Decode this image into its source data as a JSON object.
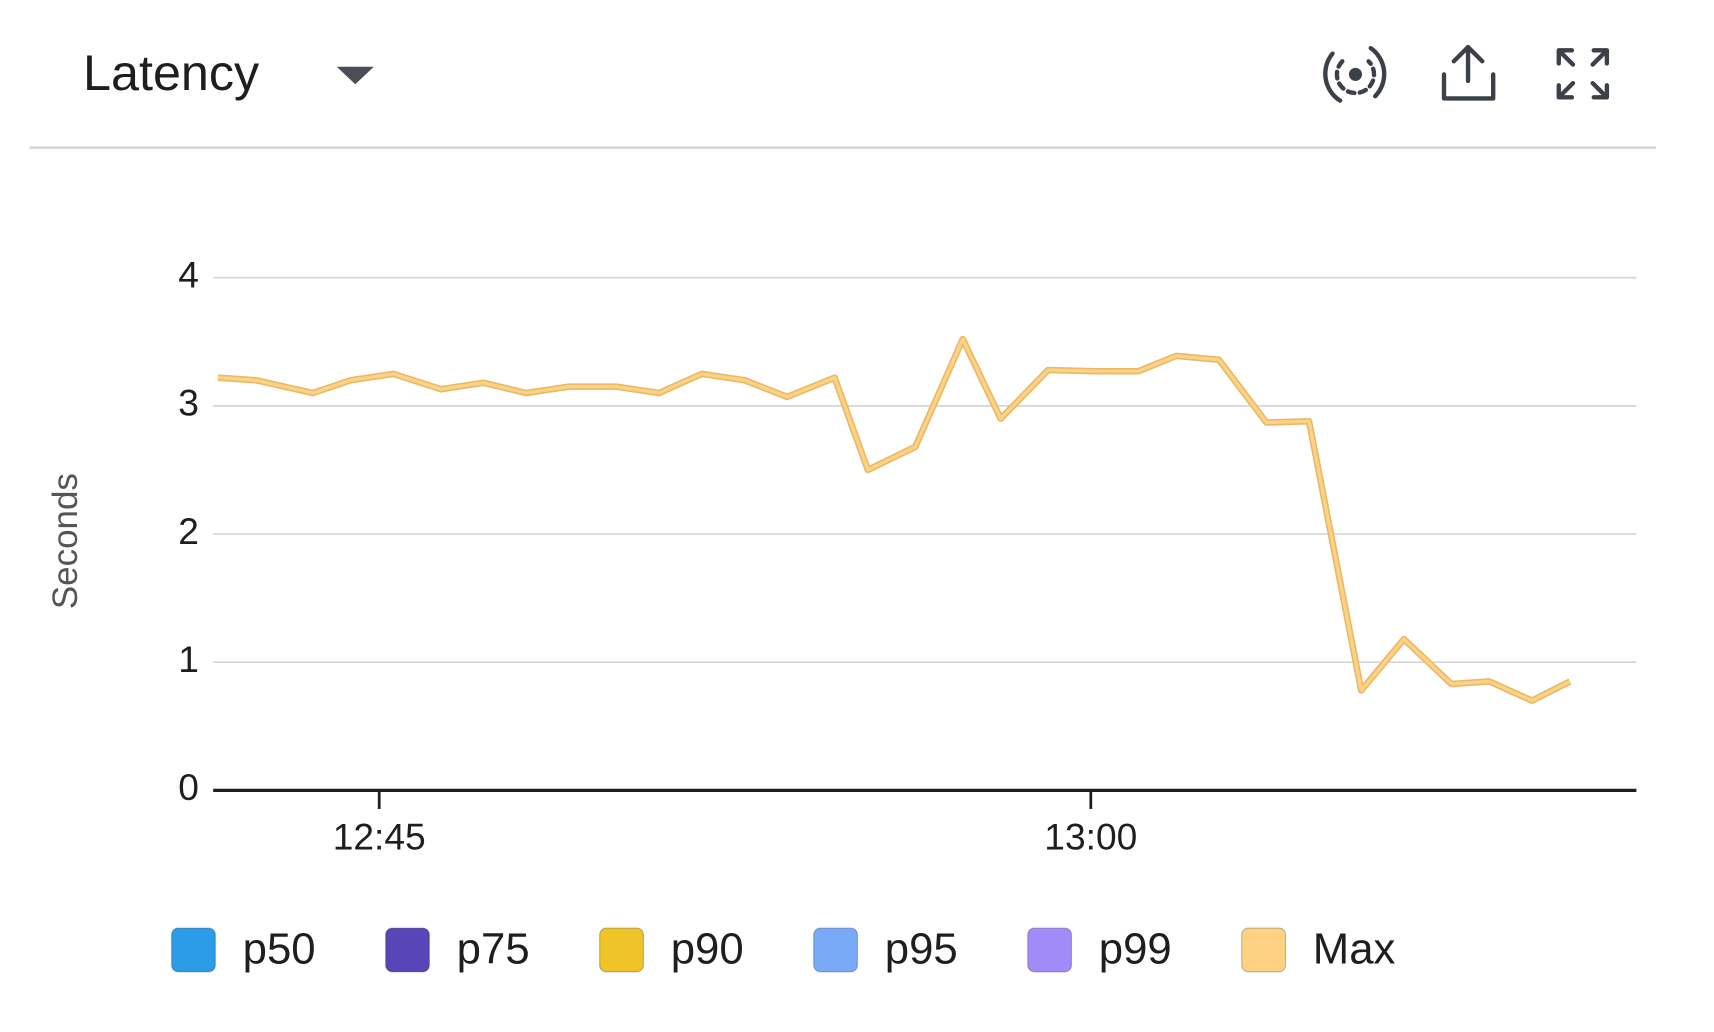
{
  "header": {
    "title": "Latency"
  },
  "chart_data": {
    "type": "line",
    "y_label": "Seconds",
    "x": [
      41.6,
      42.4,
      43.6,
      44.4,
      45.3,
      46.3,
      47.2,
      48.1,
      49.0,
      50.0,
      50.9,
      51.8,
      52.7,
      53.6,
      54.6,
      55.3,
      56.3,
      57.3,
      58.1,
      59.1,
      60.1,
      61.0,
      61.8,
      62.7,
      63.7,
      64.6,
      65.7,
      66.6,
      67.6,
      68.4,
      69.3,
      70.1
    ],
    "xlim": [
      41.5,
      71.5
    ],
    "xticks": [
      {
        "value": 45,
        "label": "12:45"
      },
      {
        "value": 60,
        "label": "13:00"
      }
    ],
    "ylim": [
      0,
      4
    ],
    "yticks": [
      0,
      1,
      2,
      3,
      4
    ],
    "grid": true,
    "legend": "bottom",
    "series": [
      {
        "name": "p50",
        "color": "#2c9be8",
        "values": [
          null,
          null,
          null,
          null,
          null,
          null,
          null,
          null,
          null,
          null,
          null,
          null,
          null,
          null,
          null,
          null,
          null,
          null,
          null,
          null,
          null,
          null,
          null,
          null,
          null,
          null,
          null,
          null,
          null,
          null,
          null,
          null
        ]
      },
      {
        "name": "p75",
        "color": "#5846b8",
        "values": [
          null,
          null,
          null,
          null,
          null,
          null,
          null,
          null,
          null,
          null,
          null,
          null,
          null,
          null,
          null,
          null,
          null,
          null,
          null,
          null,
          null,
          null,
          null,
          null,
          null,
          null,
          null,
          null,
          null,
          null,
          null,
          null
        ]
      },
      {
        "name": "p90",
        "color": "#efc429",
        "values": [
          null,
          null,
          null,
          null,
          null,
          null,
          null,
          null,
          null,
          null,
          null,
          null,
          null,
          null,
          null,
          null,
          null,
          null,
          null,
          null,
          null,
          null,
          null,
          null,
          null,
          null,
          null,
          null,
          null,
          null,
          null,
          null
        ]
      },
      {
        "name": "p95",
        "color": "#79aaf7",
        "values": [
          null,
          null,
          null,
          null,
          null,
          null,
          null,
          null,
          null,
          null,
          null,
          null,
          null,
          null,
          null,
          null,
          null,
          null,
          null,
          null,
          null,
          null,
          null,
          null,
          null,
          null,
          null,
          null,
          null,
          null,
          null,
          null
        ]
      },
      {
        "name": "p99",
        "color": "#a08bf8",
        "values": [
          null,
          null,
          null,
          null,
          null,
          null,
          null,
          null,
          null,
          null,
          null,
          null,
          null,
          null,
          null,
          null,
          null,
          null,
          null,
          null,
          null,
          null,
          null,
          null,
          null,
          null,
          null,
          null,
          null,
          null,
          null,
          null
        ]
      },
      {
        "name": "Max",
        "color": "#fdd383",
        "values": [
          3.22,
          3.2,
          3.1,
          3.2,
          3.25,
          3.13,
          3.18,
          3.1,
          3.15,
          3.15,
          3.1,
          3.25,
          3.2,
          3.07,
          3.22,
          2.5,
          2.68,
          3.52,
          2.9,
          3.28,
          3.27,
          3.27,
          3.39,
          3.36,
          2.87,
          2.88,
          0.78,
          1.18,
          0.83,
          0.85,
          0.7,
          0.85
        ]
      }
    ]
  }
}
